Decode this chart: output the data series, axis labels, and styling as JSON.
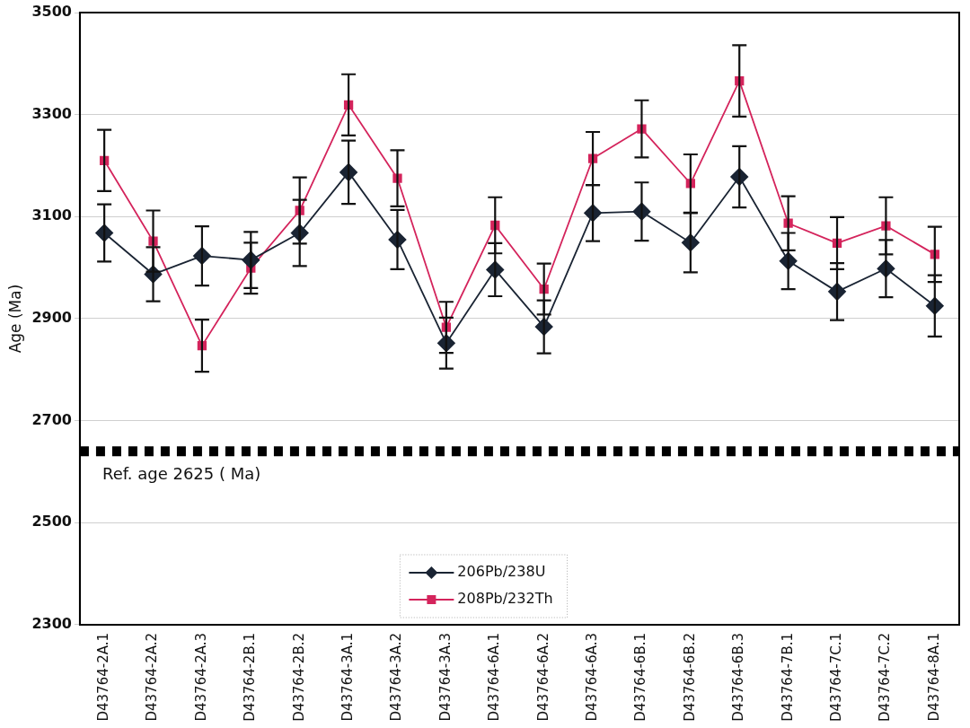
{
  "chart_data": {
    "type": "line",
    "ylabel": "Age (Ma)",
    "categories": [
      "D43764-2A.1",
      "D43764-2A.2",
      "D43764-2A.3",
      "D43764-2B.1",
      "D43764-2B.2",
      "D43764-3A.1",
      "D43764-3A.2",
      "D43764-3A.3",
      "D43764-6A.1",
      "D43764-6A.2",
      "D43764-6A.3",
      "D43764-6B.1",
      "D43764-6B.2",
      "D43764-6B.3",
      "D43764-7B.1",
      "D43764-7C.1",
      "D43764-7C.2",
      "D43764-8A.1"
    ],
    "series": [
      {
        "name": "206Pb/238U",
        "color": "#1a2433",
        "marker": "diamond",
        "values": [
          3068,
          2987,
          3023,
          3015,
          3068,
          3187,
          3055,
          2852,
          2996,
          2884,
          3107,
          3110,
          3049,
          3178,
          3013,
          2953,
          2998,
          2925
        ],
        "errors": [
          56,
          53,
          58,
          55,
          65,
          62,
          58,
          50,
          52,
          52,
          55,
          57,
          58,
          60,
          55,
          56,
          56,
          60
        ]
      },
      {
        "name": "208Pb/232Th",
        "color": "#d4245c",
        "marker": "square",
        "values": [
          3210,
          3052,
          2847,
          2999,
          3112,
          3319,
          3175,
          2883,
          3083,
          2958,
          3214,
          3272,
          3165,
          3366,
          3087,
          3048,
          3082,
          3026
        ],
        "errors": [
          60,
          60,
          51,
          50,
          65,
          60,
          55,
          50,
          55,
          50,
          52,
          56,
          57,
          70,
          53,
          51,
          56,
          54
        ]
      }
    ],
    "ylim": [
      2300,
      3500
    ],
    "yticks": [
      2300,
      2500,
      2700,
      2900,
      3100,
      3300,
      3500
    ],
    "grid": "y",
    "legend": "bottom",
    "line_style": "solid",
    "ref_lines": [
      {
        "axis": "y",
        "value": 2640,
        "label": "Ref. age 2625 ( Ma)",
        "color": "#000000",
        "line_style": "dashed"
      }
    ]
  }
}
